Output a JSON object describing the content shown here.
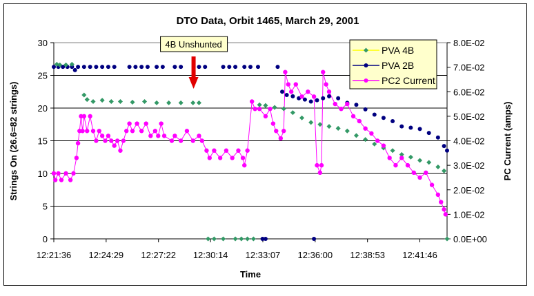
{
  "chart_data": {
    "type": "scatter",
    "title": "DTO Data, Orbit 1465, March 29, 2001",
    "xlabel": "Time",
    "ylabel": "Strings On (26.6=82 strings)",
    "y2label": "PC Current (amps)",
    "x_unit": "seconds after 12:21:36",
    "xlim": [
      0,
      1300
    ],
    "ylim": [
      0,
      30
    ],
    "y2lim": [
      0,
      0.08
    ],
    "x_ticks": [
      {
        "t": 0,
        "label": "12:21:36"
      },
      {
        "t": 173,
        "label": "12:24:29"
      },
      {
        "t": 346,
        "label": "12:27:22"
      },
      {
        "t": 518,
        "label": "12:30:14"
      },
      {
        "t": 691,
        "label": "12:33:07"
      },
      {
        "t": 864,
        "label": "12:36:00"
      },
      {
        "t": 1037,
        "label": "12:38:53"
      },
      {
        "t": 1210,
        "label": "12:41:46"
      }
    ],
    "y_ticks": [
      "0",
      "5",
      "10",
      "15",
      "20",
      "25",
      "30"
    ],
    "y2_ticks": [
      "0.0E+00",
      "1.0E-02",
      "2.0E-02",
      "3.0E-02",
      "4.0E-02",
      "5.0E-02",
      "6.0E-02",
      "7.0E-02",
      "8.0E-02"
    ],
    "grid": true,
    "legend_position": "top-right",
    "annotation": {
      "text": "4B Unshunted",
      "t": 462
    },
    "colors": {
      "pva4b": "#339966",
      "pva2b": "#000080",
      "pc2": "#ff00ff",
      "arrow": "#e00000",
      "legend_bg": "#ffffcc",
      "plot_bg": "#ffffff"
    },
    "series": [
      {
        "name": "PVA 4B",
        "axis": "left",
        "points": [
          [
            10,
            26.7
          ],
          [
            20,
            26.6
          ],
          [
            40,
            26.6
          ],
          [
            60,
            26.7
          ],
          [
            100,
            22
          ],
          [
            110,
            21.3
          ],
          [
            130,
            21
          ],
          [
            160,
            21.2
          ],
          [
            190,
            21
          ],
          [
            220,
            21
          ],
          [
            260,
            20.9
          ],
          [
            300,
            21
          ],
          [
            340,
            20.8
          ],
          [
            380,
            20.8
          ],
          [
            420,
            20.8
          ],
          [
            460,
            20.8
          ],
          [
            480,
            20.8
          ],
          [
            510,
            0
          ],
          [
            530,
            0
          ],
          [
            560,
            0
          ],
          [
            600,
            0
          ],
          [
            620,
            0
          ],
          [
            640,
            0
          ],
          [
            660,
            0
          ],
          [
            680,
            20.5
          ],
          [
            700,
            20.4
          ],
          [
            730,
            20.1
          ],
          [
            760,
            19.9
          ],
          [
            790,
            19.3
          ],
          [
            820,
            18.5
          ],
          [
            850,
            17.8
          ],
          [
            880,
            17.5
          ],
          [
            910,
            17.2
          ],
          [
            940,
            16.9
          ],
          [
            970,
            16.5
          ],
          [
            1000,
            15.8
          ],
          [
            1030,
            15.2
          ],
          [
            1060,
            14.5
          ],
          [
            1090,
            13.9
          ],
          [
            1120,
            13.5
          ],
          [
            1150,
            12.9
          ],
          [
            1180,
            12.5
          ],
          [
            1210,
            12
          ],
          [
            1240,
            11.7
          ],
          [
            1270,
            11
          ],
          [
            1290,
            10.4
          ],
          [
            1300,
            0
          ]
        ]
      },
      {
        "name": "PVA 2B",
        "axis": "left",
        "points": [
          [
            0,
            26.3
          ],
          [
            15,
            26.3
          ],
          [
            30,
            26.3
          ],
          [
            45,
            26.3
          ],
          [
            60,
            26.3
          ],
          [
            70,
            25.8
          ],
          [
            80,
            26.3
          ],
          [
            100,
            26.3
          ],
          [
            120,
            26.3
          ],
          [
            140,
            26.3
          ],
          [
            160,
            26.3
          ],
          [
            180,
            26.3
          ],
          [
            200,
            26.3
          ],
          [
            250,
            26.3
          ],
          [
            270,
            26.3
          ],
          [
            290,
            26.3
          ],
          [
            310,
            26.3
          ],
          [
            340,
            26.3
          ],
          [
            360,
            26.3
          ],
          [
            400,
            26.3
          ],
          [
            420,
            26.3
          ],
          [
            480,
            26.3
          ],
          [
            500,
            26.3
          ],
          [
            560,
            26.3
          ],
          [
            580,
            26.3
          ],
          [
            600,
            26.3
          ],
          [
            630,
            26.3
          ],
          [
            650,
            26.3
          ],
          [
            675,
            26.3
          ],
          [
            690,
            0
          ],
          [
            700,
            0
          ],
          [
            740,
            26.3
          ],
          [
            755,
            22.5
          ],
          [
            770,
            22
          ],
          [
            790,
            21.8
          ],
          [
            810,
            21.5
          ],
          [
            830,
            21.3
          ],
          [
            850,
            21
          ],
          [
            860,
            0
          ],
          [
            870,
            21.2
          ],
          [
            890,
            21.5
          ],
          [
            910,
            21.8
          ],
          [
            940,
            21.5
          ],
          [
            970,
            20.8
          ],
          [
            1000,
            20.5
          ],
          [
            1030,
            19.8
          ],
          [
            1060,
            19
          ],
          [
            1090,
            18.5
          ],
          [
            1120,
            18
          ],
          [
            1150,
            17.2
          ],
          [
            1180,
            17
          ],
          [
            1210,
            16.8
          ],
          [
            1240,
            16.2
          ],
          [
            1270,
            15.5
          ],
          [
            1290,
            14.2
          ],
          [
            1300,
            13.5
          ]
        ]
      },
      {
        "name": "PC2 Current",
        "axis": "right",
        "points": [
          [
            0,
            0.0267
          ],
          [
            5,
            0.024
          ],
          [
            15,
            0.0267
          ],
          [
            25,
            0.024
          ],
          [
            40,
            0.0267
          ],
          [
            55,
            0.024
          ],
          [
            65,
            0.0267
          ],
          [
            75,
            0.033
          ],
          [
            80,
            0.039
          ],
          [
            85,
            0.044
          ],
          [
            90,
            0.05
          ],
          [
            95,
            0.044
          ],
          [
            100,
            0.05
          ],
          [
            110,
            0.044
          ],
          [
            120,
            0.05
          ],
          [
            130,
            0.044
          ],
          [
            140,
            0.04
          ],
          [
            150,
            0.044
          ],
          [
            160,
            0.042
          ],
          [
            170,
            0.04
          ],
          [
            180,
            0.042
          ],
          [
            190,
            0.04
          ],
          [
            200,
            0.038
          ],
          [
            210,
            0.04
          ],
          [
            220,
            0.036
          ],
          [
            230,
            0.04
          ],
          [
            240,
            0.044
          ],
          [
            250,
            0.047
          ],
          [
            260,
            0.044
          ],
          [
            275,
            0.047
          ],
          [
            290,
            0.044
          ],
          [
            305,
            0.047
          ],
          [
            320,
            0.042
          ],
          [
            335,
            0.044
          ],
          [
            345,
            0.042
          ],
          [
            355,
            0.047
          ],
          [
            365,
            0.042
          ],
          [
            390,
            0.04
          ],
          [
            400,
            0.042
          ],
          [
            420,
            0.04
          ],
          [
            440,
            0.044
          ],
          [
            460,
            0.04
          ],
          [
            480,
            0.042
          ],
          [
            490,
            0.04
          ],
          [
            505,
            0.036
          ],
          [
            515,
            0.033
          ],
          [
            530,
            0.036
          ],
          [
            550,
            0.033
          ],
          [
            570,
            0.036
          ],
          [
            590,
            0.033
          ],
          [
            610,
            0.036
          ],
          [
            625,
            0.033
          ],
          [
            630,
            0.03
          ],
          [
            640,
            0.036
          ],
          [
            655,
            0.056
          ],
          [
            665,
            0.053
          ],
          [
            680,
            0.053
          ],
          [
            700,
            0.05
          ],
          [
            715,
            0.053
          ],
          [
            725,
            0.047
          ],
          [
            735,
            0.044
          ],
          [
            750,
            0.041
          ],
          [
            760,
            0.044
          ],
          [
            765,
            0.068
          ],
          [
            775,
            0.063
          ],
          [
            785,
            0.06
          ],
          [
            800,
            0.063
          ],
          [
            820,
            0.058
          ],
          [
            840,
            0.06
          ],
          [
            860,
            0.058
          ],
          [
            870,
            0.03
          ],
          [
            880,
            0.027
          ],
          [
            885,
            0.03
          ],
          [
            890,
            0.068
          ],
          [
            900,
            0.063
          ],
          [
            910,
            0.06
          ],
          [
            930,
            0.055
          ],
          [
            950,
            0.053
          ],
          [
            970,
            0.055
          ],
          [
            990,
            0.05
          ],
          [
            1010,
            0.048
          ],
          [
            1030,
            0.045
          ],
          [
            1050,
            0.043
          ],
          [
            1070,
            0.04
          ],
          [
            1090,
            0.038
          ],
          [
            1110,
            0.033
          ],
          [
            1130,
            0.03
          ],
          [
            1150,
            0.033
          ],
          [
            1170,
            0.03
          ],
          [
            1190,
            0.027
          ],
          [
            1210,
            0.025
          ],
          [
            1230,
            0.027
          ],
          [
            1250,
            0.022
          ],
          [
            1270,
            0.018
          ],
          [
            1280,
            0.015
          ],
          [
            1290,
            0.012
          ],
          [
            1295,
            0.01
          ]
        ]
      }
    ]
  }
}
